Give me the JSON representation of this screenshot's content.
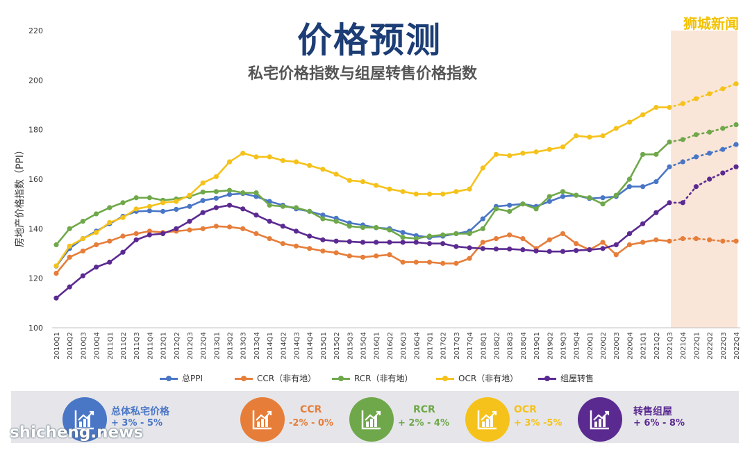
{
  "header": {
    "title": "价格预测",
    "subtitle": "私宅价格指数与组屋转售价格指数",
    "watermark_top": "狮城新闻",
    "watermark_bottom": "shicheng.news"
  },
  "colors": {
    "ppi": "#4a76c6",
    "ccr": "#e67e3a",
    "rcr": "#6fa84a",
    "ocr": "#f5c21b",
    "hdb": "#5b2a91",
    "forecast_band": "#f6d2b9"
  },
  "summary": [
    {
      "title": "总体私宅价格",
      "range": "+ 3% - 5%",
      "color": "#4a76c6",
      "icon": "chart-up-icon"
    },
    {
      "title": "CCR",
      "range": "-2% - 0%",
      "color": "#e67e3a",
      "icon": "chart-up-icon"
    },
    {
      "title": "RCR",
      "range": "+ 2% - 4%",
      "color": "#6fa84a",
      "icon": "chart-up-icon"
    },
    {
      "title": "OCR",
      "range": "+ 3% -5%",
      "color": "#f5c21b",
      "icon": "chart-up-icon"
    },
    {
      "title": "转售组屋",
      "range": "+ 6% - 8%",
      "color": "#5b2a91",
      "icon": "chart-up-icon"
    }
  ],
  "chart_data": {
    "type": "line",
    "title": "价格预测",
    "subtitle": "私宅价格指数与组屋转售价格指数",
    "xlabel": "",
    "ylabel": "房地产价格指数（PPI）",
    "ylim": [
      100,
      220
    ],
    "yticks": [
      100,
      120,
      140,
      160,
      180,
      200,
      220
    ],
    "grid": false,
    "legend_position": "bottom",
    "forecast_from": "2021Q3",
    "categories": [
      "2010Q1",
      "2010Q2",
      "2010Q3",
      "2010Q4",
      "2011Q1",
      "2011Q2",
      "2011Q3",
      "2011Q4",
      "2012Q1",
      "2012Q2",
      "2012Q3",
      "2012Q4",
      "2013Q1",
      "2013Q2",
      "2013Q3",
      "2013Q4",
      "2014Q1",
      "2014Q2",
      "2014Q3",
      "2014Q4",
      "2015Q1",
      "2015Q2",
      "2015Q3",
      "2015Q4",
      "2016Q1",
      "2016Q2",
      "2016Q3",
      "2016Q4",
      "2017Q1",
      "2017Q2",
      "2017Q3",
      "2017Q4",
      "2018Q1",
      "2018Q2",
      "2018Q3",
      "2018Q4",
      "2019Q1",
      "2019Q2",
      "2019Q3",
      "2019Q4",
      "2020Q1",
      "2020Q2",
      "2020Q3",
      "2020Q4",
      "2021Q1",
      "2021Q2",
      "2021Q3",
      "2021Q4",
      "2022Q1",
      "2022Q2",
      "2022Q3",
      "2022Q4"
    ],
    "series": [
      {
        "name": "总PPI",
        "color": "#4a76c6",
        "values": [
          124.9,
          132.0,
          136.0,
          139.0,
          142.0,
          145.0,
          147.0,
          147.2,
          147.0,
          147.8,
          149.0,
          151.4,
          152.3,
          153.8,
          154.2,
          153.0,
          151.0,
          149.5,
          148.0,
          147.0,
          145.5,
          144.2,
          142.3,
          141.5,
          140.4,
          140.0,
          138.5,
          137.2,
          136.5,
          137.0,
          138.0,
          139.0,
          144.0,
          149.0,
          149.5,
          150.0,
          149.0,
          151.0,
          153.0,
          153.5,
          152.2,
          152.5,
          153.0,
          157.0,
          157.0,
          159.0,
          165.0,
          167.0,
          169.0,
          170.5,
          172.0,
          174.0
        ]
      },
      {
        "name": "CCR（非有地）",
        "color": "#e67e3a",
        "values": [
          122.0,
          128.5,
          131.0,
          133.5,
          135.0,
          137.0,
          138.0,
          139.0,
          138.5,
          139.0,
          139.5,
          140.0,
          141.0,
          140.7,
          140.0,
          138.0,
          136.0,
          134.0,
          133.0,
          132.0,
          131.0,
          130.3,
          129.0,
          128.5,
          129.0,
          129.5,
          126.5,
          126.5,
          126.5,
          126.0,
          126.0,
          128.0,
          134.5,
          136.0,
          137.5,
          136.0,
          132.0,
          135.5,
          138.0,
          134.0,
          131.5,
          134.5,
          129.5,
          133.5,
          134.5,
          135.5,
          135.0,
          136.0,
          136.0,
          135.5,
          135.0,
          135.0
        ]
      },
      {
        "name": "RCR（非有地）",
        "color": "#6fa84a",
        "values": [
          133.5,
          140.0,
          143.0,
          146.0,
          148.5,
          150.5,
          152.5,
          152.5,
          151.5,
          152.0,
          153.0,
          154.8,
          155.0,
          155.5,
          154.5,
          154.5,
          149.5,
          149.0,
          148.5,
          147.0,
          144.0,
          143.0,
          141.0,
          140.5,
          140.5,
          139.5,
          136.5,
          136.0,
          137.0,
          137.5,
          138.0,
          138.0,
          140.0,
          148.0,
          147.0,
          150.0,
          148.0,
          153.0,
          155.0,
          153.5,
          152.5,
          150.0,
          153.5,
          160.0,
          170.0,
          170.0,
          175.0,
          176.0,
          178.0,
          179.0,
          180.5,
          182.0
        ]
      },
      {
        "name": "OCR（非有地）",
        "color": "#f5c21b",
        "values": [
          125.0,
          133.0,
          136.0,
          138.5,
          142.5,
          144.5,
          148.0,
          149.0,
          150.5,
          151.0,
          153.5,
          158.5,
          161.0,
          167.0,
          170.5,
          169.0,
          169.0,
          167.5,
          167.0,
          165.5,
          164.0,
          162.0,
          159.5,
          159.0,
          157.5,
          156.0,
          155.0,
          154.0,
          154.0,
          154.0,
          155.0,
          156.0,
          164.5,
          170.0,
          169.5,
          170.5,
          171.0,
          172.0,
          173.0,
          177.5,
          177.0,
          177.5,
          180.5,
          183.0,
          186.0,
          189.0,
          189.0,
          190.5,
          192.5,
          194.5,
          196.5,
          198.5
        ]
      },
      {
        "name": "组屋转售",
        "color": "#5b2a91",
        "values": [
          112.0,
          116.5,
          121.0,
          124.5,
          126.5,
          130.5,
          135.5,
          137.5,
          138.0,
          140.0,
          143.0,
          146.5,
          148.5,
          149.5,
          148.0,
          145.5,
          143.0,
          141.0,
          139.0,
          137.0,
          135.5,
          135.0,
          134.8,
          134.5,
          134.5,
          134.5,
          134.5,
          134.5,
          134.0,
          134.0,
          132.8,
          132.3,
          132.0,
          131.8,
          131.8,
          131.5,
          131.0,
          130.8,
          130.8,
          131.2,
          131.5,
          132.0,
          133.5,
          138.0,
          142.0,
          146.5,
          150.5,
          150.5,
          157.0,
          160.0,
          162.5,
          165.0
        ]
      }
    ]
  }
}
